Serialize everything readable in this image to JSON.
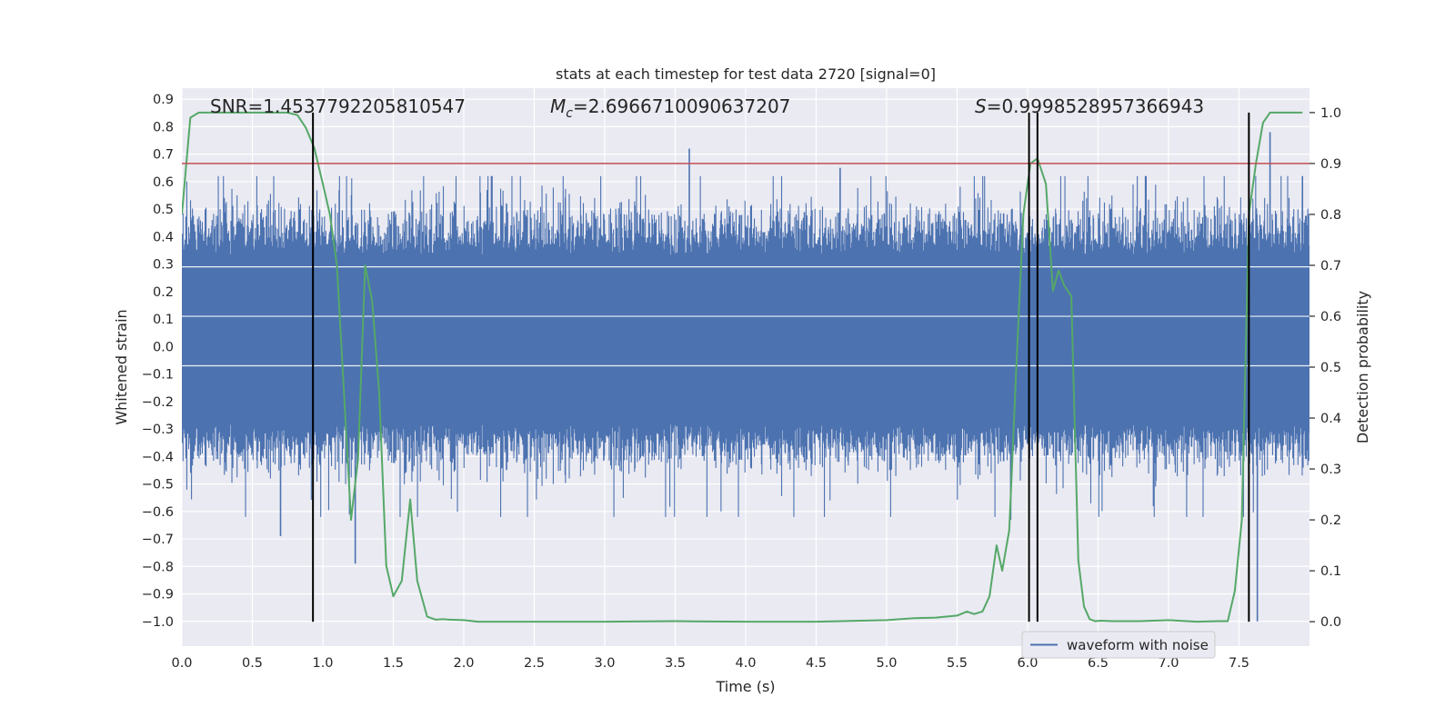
{
  "chart_data": {
    "type": "line",
    "title": "stats at each timestep for test data 2720 [signal=0]",
    "xlabel": "Time (s)",
    "ylabel": "Whitened strain",
    "y2label": "Detection probability",
    "xlim": [
      0.0,
      8.0
    ],
    "ylim": [
      -1.09,
      0.94
    ],
    "y2lim": [
      -0.048,
      1.048
    ],
    "xticks": [
      "0.0",
      "0.5",
      "1.0",
      "1.5",
      "2.0",
      "2.5",
      "3.0",
      "3.5",
      "4.0",
      "4.5",
      "5.0",
      "5.5",
      "6.0",
      "6.5",
      "7.0",
      "7.5"
    ],
    "yticks": [
      "0.9",
      "0.8",
      "0.7",
      "0.6",
      "0.5",
      "0.4",
      "0.3",
      "0.2",
      "0.1",
      "0.0",
      "−0.1",
      "−0.2",
      "−0.3",
      "−0.4",
      "−0.5",
      "−0.6",
      "−0.7",
      "−0.8",
      "−0.9",
      "−1.0"
    ],
    "y2ticks": [
      "0.0",
      "0.1",
      "0.2",
      "0.3",
      "0.4",
      "0.5",
      "0.6",
      "0.7",
      "0.8",
      "0.9",
      "1.0"
    ],
    "stats": {
      "snr": "SNR=1.4537792205810547",
      "mc_symbol": "M",
      "mc_sub": "c",
      "mc_value": "=2.6966710090637207",
      "s_symbol": "S",
      "s_value": "=0.9998528957366943"
    },
    "legend": [
      {
        "label": "waveform with noise",
        "color": "#4c72b0"
      }
    ],
    "threshold": {
      "value": 0.9,
      "axis": "right",
      "color": "#c44e52"
    },
    "vlines": [
      0.93,
      6.01,
      6.07,
      7.57
    ],
    "series": [
      {
        "name": "waveform with noise",
        "axis": "left",
        "color": "#4c72b0",
        "style": "dense noise band",
        "core_range": [
          -0.27,
          0.3
        ],
        "visible_extrema": [
          {
            "x": 0.7,
            "y": -0.69
          },
          {
            "x": 1.23,
            "y": -0.79
          },
          {
            "x": 3.6,
            "y": 0.72
          },
          {
            "x": 4.67,
            "y": 0.65
          },
          {
            "x": 5.88,
            "y": -0.63
          },
          {
            "x": 7.63,
            "y": -1.0
          },
          {
            "x": 7.72,
            "y": 0.78
          },
          {
            "x": 7.95,
            "y": 0.62
          }
        ]
      },
      {
        "name": "detection probability",
        "axis": "right",
        "color": "#55a868",
        "x": [
          0.0,
          0.06,
          0.12,
          0.2,
          0.4,
          0.6,
          0.75,
          0.82,
          0.88,
          0.94,
          1.0,
          1.05,
          1.1,
          1.15,
          1.2,
          1.25,
          1.3,
          1.35,
          1.4,
          1.45,
          1.5,
          1.56,
          1.62,
          1.67,
          1.74,
          1.8,
          1.85,
          1.9,
          2.0,
          2.1,
          2.2,
          2.5,
          3.0,
          3.5,
          4.0,
          4.5,
          5.0,
          5.2,
          5.35,
          5.5,
          5.57,
          5.62,
          5.68,
          5.73,
          5.78,
          5.82,
          5.87,
          5.92,
          5.97,
          6.02,
          6.07,
          6.13,
          6.18,
          6.22,
          6.26,
          6.31,
          6.36,
          6.4,
          6.44,
          6.48,
          6.52,
          6.6,
          6.8,
          7.0,
          7.2,
          7.35,
          7.42,
          7.47,
          7.52,
          7.57,
          7.62,
          7.67,
          7.72,
          7.78,
          7.85,
          7.95
        ],
        "y": [
          0.8,
          0.99,
          1.0,
          1.0,
          1.0,
          1.0,
          1.0,
          0.995,
          0.97,
          0.93,
          0.86,
          0.8,
          0.7,
          0.45,
          0.2,
          0.32,
          0.7,
          0.63,
          0.45,
          0.11,
          0.05,
          0.08,
          0.24,
          0.08,
          0.01,
          0.004,
          0.005,
          0.004,
          0.003,
          0.0,
          0.0,
          0.0,
          0.0,
          0.001,
          0.0,
          0.0,
          0.003,
          0.007,
          0.008,
          0.012,
          0.02,
          0.015,
          0.02,
          0.05,
          0.15,
          0.1,
          0.18,
          0.5,
          0.8,
          0.9,
          0.91,
          0.86,
          0.65,
          0.69,
          0.66,
          0.64,
          0.12,
          0.03,
          0.005,
          0.001,
          0.002,
          0.001,
          0.001,
          0.003,
          0.0,
          0.001,
          0.001,
          0.06,
          0.2,
          0.8,
          0.9,
          0.98,
          1.0,
          1.0,
          1.0,
          1.0
        ]
      }
    ]
  }
}
